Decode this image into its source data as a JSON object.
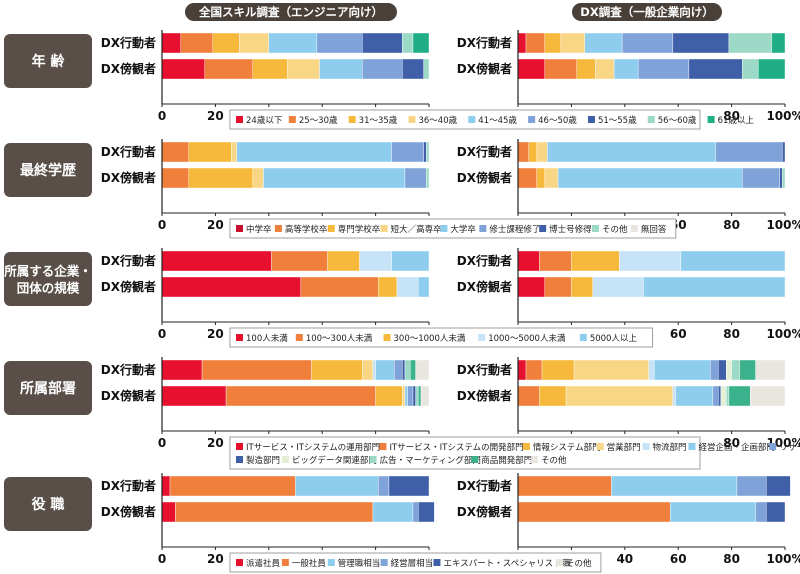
{
  "header": {
    "left_title": "全国スキル調査（エンジニア向け）",
    "right_title": "DX調査（一般企業向け）"
  },
  "row_labels": [
    "DX行動者",
    "DX傍観者"
  ],
  "axis_ticks": [
    "0",
    "20",
    "40",
    "60",
    "80",
    "100%"
  ],
  "colors": {
    "section_label_bg": "#5a4f48",
    "title_bg": "#4a403a",
    "axis": "#222222",
    "dark_red": "#c8102e",
    "red": "#e8102f",
    "orange": "#f07f3c",
    "yellow": "#f6b93b",
    "light_yellow": "#f8d685",
    "pale_blue": "#c6e3f7",
    "sky": "#8ecdee",
    "med_blue": "#7fa3d8",
    "navy": "#3f5fa8",
    "mint": "#9cd9c7",
    "teal": "#1fae86",
    "green": "#3bb28c",
    "gray": "#c9c9c9",
    "pale_gray": "#e9e6e0"
  },
  "chart_data": [
    {
      "type": "bar",
      "orientation": "horizontal",
      "stacked": true,
      "section": "年 齢",
      "legend_colors": [
        "#e8102f",
        "#f07f3c",
        "#f6b93b",
        "#f8d685",
        "#8ecdee",
        "#7fa3d8",
        "#3f5fa8",
        "#9cd9c7",
        "#1fae86"
      ],
      "legend": [
        "24歳以下",
        "25～30歳",
        "31～35歳",
        "36～40歳",
        "41～45歳",
        "46～50歳",
        "51～55歳",
        "56～60歳",
        "61歳以上"
      ],
      "panels": [
        {
          "title": "全国スキル調査（エンジニア向け）",
          "xlim": [
            0,
            100
          ],
          "rows": [
            {
              "label": "DX行動者",
              "values": [
                7,
                12,
                10,
                11,
                18,
                17,
                15,
                4,
                6
              ]
            },
            {
              "label": "DX傍観者",
              "values": [
                16,
                18,
                13,
                12,
                16,
                15,
                8,
                2,
                0
              ]
            }
          ]
        },
        {
          "title": "DX調査（一般企業向け）",
          "xlim": [
            0,
            100
          ],
          "rows": [
            {
              "label": "DX行動者",
              "values": [
                3,
                7,
                6,
                9,
                14,
                19,
                21,
                16,
                5
              ]
            },
            {
              "label": "DX傍観者",
              "values": [
                10,
                12,
                7,
                7,
                9,
                19,
                20,
                6,
                10
              ]
            }
          ]
        }
      ]
    },
    {
      "type": "bar",
      "orientation": "horizontal",
      "stacked": true,
      "section": "最終学歴",
      "legend_colors": [
        "#c8102e",
        "#f07f3c",
        "#f6b93b",
        "#f8d685",
        "#8ecdee",
        "#7fa3d8",
        "#3f5fa8",
        "#9cd9c7",
        "#e9e6e0"
      ],
      "legend": [
        "中学卒",
        "高等学校卒",
        "専門学校卒",
        "短大／高専卒",
        "大学卒",
        "修士課程修了",
        "博士号修得",
        "その他",
        "無回答"
      ],
      "panels": [
        {
          "title": "全国スキル調査（エンジニア向け）",
          "xlim": [
            0,
            100
          ],
          "rows": [
            {
              "label": "DX行動者",
              "values": [
                0,
                10,
                16,
                2,
                58,
                12,
                1,
                1,
                0
              ]
            },
            {
              "label": "DX傍観者",
              "values": [
                0,
                10,
                24,
                4,
                53,
                8,
                0,
                1,
                0
              ]
            }
          ]
        },
        {
          "title": "DX調査（一般企業向け）",
          "xlim": [
            0,
            100
          ],
          "rows": [
            {
              "label": "DX行動者",
              "values": [
                0,
                4,
                3,
                4,
                63,
                25,
                1,
                0,
                0
              ]
            },
            {
              "label": "DX傍観者",
              "values": [
                0,
                7,
                3,
                5,
                69,
                14,
                1,
                1,
                0
              ]
            }
          ]
        }
      ]
    },
    {
      "type": "bar",
      "orientation": "horizontal",
      "stacked": true,
      "section": "所属する企業・団体の規模",
      "legend_colors": [
        "#e8102f",
        "#f07f3c",
        "#f6b93b",
        "#c6e3f7",
        "#8ecdee"
      ],
      "legend": [
        "100人未満",
        "100～300人未満",
        "300～1000人未満",
        "1000～5000人未満",
        "5000人以上"
      ],
      "panels": [
        {
          "title": "全国スキル調査（エンジニア向け）",
          "xlim": [
            0,
            100
          ],
          "rows": [
            {
              "label": "DX行動者",
              "values": [
                41,
                21,
                12,
                12,
                14
              ]
            },
            {
              "label": "DX傍観者",
              "values": [
                52,
                29,
                7,
                8,
                4
              ]
            }
          ]
        },
        {
          "title": "DX調査（一般企業向け）",
          "xlim": [
            0,
            100
          ],
          "rows": [
            {
              "label": "DX行動者",
              "values": [
                8,
                12,
                18,
                23,
                39
              ]
            },
            {
              "label": "DX傍観者",
              "values": [
                10,
                10,
                8,
                19,
                53
              ]
            }
          ]
        }
      ]
    },
    {
      "type": "bar",
      "orientation": "horizontal",
      "stacked": true,
      "section": "所属部署",
      "legend_colors": [
        "#e8102f",
        "#f07f3c",
        "#f6b93b",
        "#f8d685",
        "#c6e3f7",
        "#8ecdee",
        "#7fa3d8",
        "#3f5fa8",
        "#e4efd6",
        "#9cd9c7",
        "#3bb28c",
        "#e9e6e0"
      ],
      "legend": [
        "ITサービス・ITシステムの運用部門",
        "ITサービス・ITシステムの開発部門",
        "情報システム部門",
        "営業部門",
        "物流部門",
        "経営企画・企画部門",
        "リサーチ・コンサル部門",
        "製造部門",
        "ビッグデータ関連部門",
        "広告・マーケティング部門",
        "商品開発部門",
        "その他"
      ],
      "panels": [
        {
          "title": "全国スキル調査（エンジニア向け）",
          "xlim": [
            0,
            100
          ],
          "rows": [
            {
              "label": "DX行動者",
              "values": [
                15,
                41,
                19,
                4,
                1,
                7,
                3,
                1,
                0,
                2,
                2,
                5
              ]
            },
            {
              "label": "DX傍観者",
              "values": [
                24,
                56,
                10,
                1,
                0,
                1,
                2,
                1,
                0,
                1,
                1,
                3
              ]
            }
          ]
        },
        {
          "title": "DX調査（一般企業向け）",
          "xlim": [
            0,
            100
          ],
          "rows": [
            {
              "label": "DX行動者",
              "values": [
                3,
                6,
                12,
                28,
                2,
                21,
                3,
                3,
                2,
                3,
                6,
                11
              ]
            },
            {
              "label": "DX傍観者",
              "values": [
                0,
                8,
                10,
                40,
                1,
                14,
                2,
                1,
                2,
                1,
                8,
                13
              ]
            }
          ]
        }
      ]
    },
    {
      "type": "bar",
      "orientation": "horizontal",
      "stacked": true,
      "section": "役 職",
      "legend_colors": [
        "#e8102f",
        "#f07f3c",
        "#8ecdee",
        "#7fa3d8",
        "#3f5fa8",
        "#e9e6e0"
      ],
      "legend": [
        "派遣社員",
        "一般社員",
        "管理職相当",
        "経営層相当",
        "エキスパート・スペシャリスト職",
        "その他"
      ],
      "panels": [
        {
          "title": "全国スキル調査（エンジニア向け）",
          "xlim": [
            0,
            100
          ],
          "rows": [
            {
              "label": "DX行動者",
              "values": [
                3,
                47,
                31,
                4,
                15,
                0
              ]
            },
            {
              "label": "DX傍観者",
              "values": [
                5,
                74,
                15,
                2,
                6,
                0
              ]
            }
          ]
        },
        {
          "title": "DX調査（一般企業向け）",
          "xlim": [
            0,
            100
          ],
          "rows": [
            {
              "label": "DX行動者",
              "values": [
                0,
                35,
                47,
                11,
                9,
                0
              ]
            },
            {
              "label": "DX傍観者",
              "values": [
                0,
                57,
                32,
                4,
                7,
                0
              ]
            }
          ]
        }
      ]
    }
  ]
}
